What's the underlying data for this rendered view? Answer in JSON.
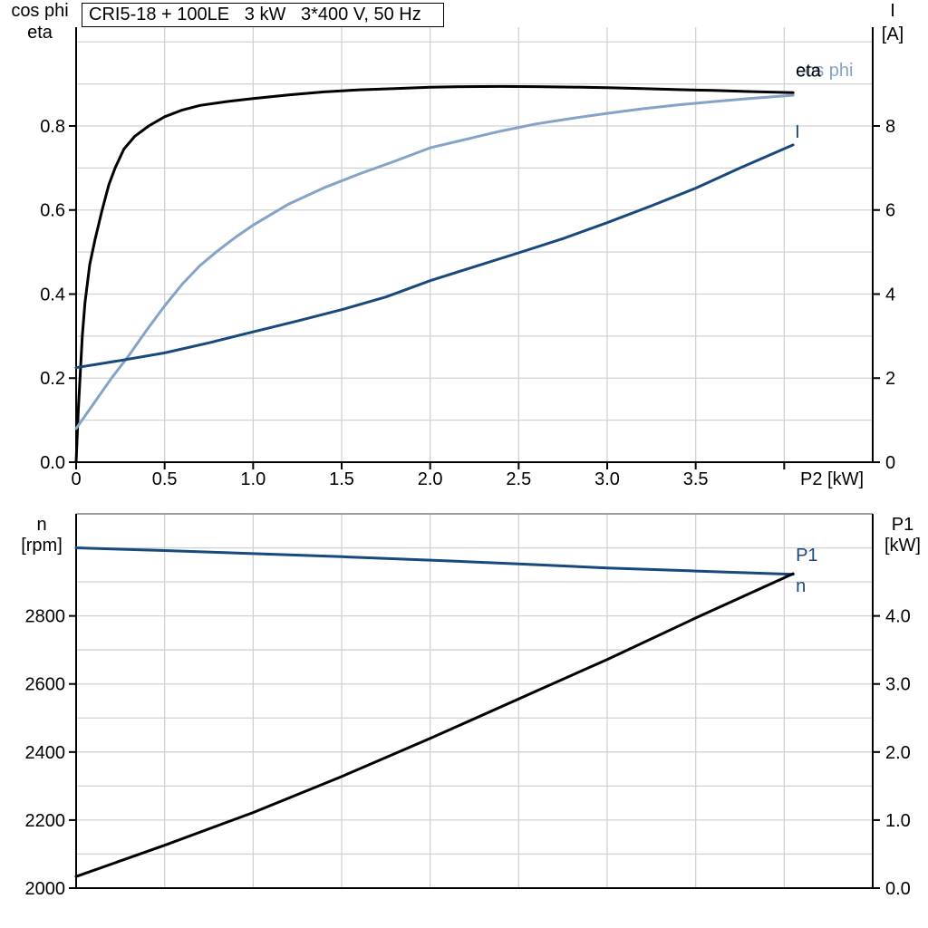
{
  "colors": {
    "black": "#000000",
    "light_blue": "#84A3C6",
    "dark_blue": "#17497C",
    "grid": "#D2D2D2",
    "frame_gray": "#808080",
    "background": "#FFFFFF"
  },
  "chart_data": [
    {
      "id": "performance-upper",
      "type": "line",
      "title": "CRI5-18 + 100LE   3 kW   3*400 V, 50 Hz",
      "x_axis": {
        "label": "P2 [kW]",
        "range": [
          0,
          4.5
        ],
        "grid_step": 0.5,
        "ticks": [
          [
            0,
            "0"
          ],
          [
            0.5,
            "0.5"
          ],
          [
            1,
            "1.0"
          ],
          [
            1.5,
            "1.5"
          ],
          [
            2,
            "2.0"
          ],
          [
            2.5,
            "2.5"
          ],
          [
            3,
            "3.0"
          ],
          [
            3.5,
            "3.5"
          ],
          [
            4,
            ""
          ]
        ]
      },
      "left_axis": {
        "label_lines": [
          "cos phi",
          "eta"
        ],
        "range": [
          0,
          1.035
        ],
        "grid_step": 0.1,
        "ticks": [
          [
            0,
            "0.0"
          ],
          [
            0.2,
            "0.2"
          ],
          [
            0.4,
            "0.4"
          ],
          [
            0.6,
            "0.6"
          ],
          [
            0.8,
            "0.8"
          ]
        ]
      },
      "right_axis": {
        "label_lines": [
          "I",
          "[A]"
        ],
        "range": [
          0,
          10.35
        ],
        "ticks": [
          [
            0,
            "0"
          ],
          [
            2,
            "2"
          ],
          [
            4,
            "4"
          ],
          [
            6,
            "6"
          ],
          [
            8,
            "8"
          ]
        ]
      },
      "series": [
        {
          "slug": "eta",
          "label": "eta",
          "axis": "left",
          "color": "black",
          "label_offset": [
            3,
            -18
          ],
          "points": [
            [
              0,
              0
            ],
            [
              0.012,
              0.12
            ],
            [
              0.022,
              0.2
            ],
            [
              0.035,
              0.3
            ],
            [
              0.05,
              0.38
            ],
            [
              0.077,
              0.47
            ],
            [
              0.107,
              0.53
            ],
            [
              0.147,
              0.6
            ],
            [
              0.185,
              0.66
            ],
            [
              0.22,
              0.7
            ],
            [
              0.27,
              0.745
            ],
            [
              0.33,
              0.775
            ],
            [
              0.41,
              0.8
            ],
            [
              0.5,
              0.822
            ],
            [
              0.6,
              0.838
            ],
            [
              0.7,
              0.849
            ],
            [
              0.85,
              0.858
            ],
            [
              1.0,
              0.865
            ],
            [
              1.2,
              0.874
            ],
            [
              1.4,
              0.881
            ],
            [
              1.6,
              0.886
            ],
            [
              1.8,
              0.889
            ],
            [
              2.0,
              0.892
            ],
            [
              2.2,
              0.8935
            ],
            [
              2.4,
              0.894
            ],
            [
              2.6,
              0.8935
            ],
            [
              2.8,
              0.8925
            ],
            [
              3.0,
              0.891
            ],
            [
              3.2,
              0.889
            ],
            [
              3.4,
              0.8865
            ],
            [
              3.6,
              0.8845
            ],
            [
              3.8,
              0.882
            ],
            [
              4.05,
              0.879
            ]
          ]
        },
        {
          "slug": "cos-phi",
          "label": "cos phi",
          "axis": "left",
          "color": "light_blue",
          "label_offset": [
            3,
            -21
          ],
          "points": [
            [
              0,
              0.08
            ],
            [
              0.1,
              0.14
            ],
            [
              0.2,
              0.2
            ],
            [
              0.3,
              0.255
            ],
            [
              0.4,
              0.315
            ],
            [
              0.5,
              0.372
            ],
            [
              0.6,
              0.424
            ],
            [
              0.7,
              0.468
            ],
            [
              0.8,
              0.503
            ],
            [
              0.9,
              0.535
            ],
            [
              1.0,
              0.564
            ],
            [
              1.2,
              0.614
            ],
            [
              1.4,
              0.653
            ],
            [
              1.6,
              0.686
            ],
            [
              1.8,
              0.716
            ],
            [
              2.0,
              0.748
            ],
            [
              2.2,
              0.768
            ],
            [
              2.4,
              0.788
            ],
            [
              2.6,
              0.805
            ],
            [
              2.8,
              0.818
            ],
            [
              3.0,
              0.83
            ],
            [
              3.2,
              0.841
            ],
            [
              3.4,
              0.85
            ],
            [
              3.6,
              0.858
            ],
            [
              3.8,
              0.865
            ],
            [
              4.05,
              0.873
            ]
          ]
        },
        {
          "slug": "current",
          "label": "I",
          "axis": "right",
          "color": "dark_blue",
          "label_offset": [
            2,
            -8
          ],
          "points": [
            [
              0,
              2.25
            ],
            [
              0.25,
              2.42
            ],
            [
              0.5,
              2.6
            ],
            [
              0.75,
              2.84
            ],
            [
              1.0,
              3.1
            ],
            [
              1.25,
              3.36
            ],
            [
              1.5,
              3.63
            ],
            [
              1.75,
              3.93
            ],
            [
              2.0,
              4.32
            ],
            [
              2.25,
              4.65
            ],
            [
              2.5,
              4.98
            ],
            [
              2.75,
              5.32
            ],
            [
              3.0,
              5.7
            ],
            [
              3.25,
              6.1
            ],
            [
              3.5,
              6.52
            ],
            [
              3.75,
              7.0
            ],
            [
              4.05,
              7.55
            ]
          ]
        }
      ]
    },
    {
      "id": "performance-lower",
      "type": "line",
      "title": "",
      "x_axis": {
        "label": "",
        "range": [
          0,
          4.5
        ],
        "grid_step": 0.5,
        "ticks": []
      },
      "left_axis": {
        "label_lines": [
          "n",
          "[rpm]"
        ],
        "range": [
          2000,
          3100
        ],
        "grid_step": 100,
        "ticks": [
          [
            2000,
            "2000"
          ],
          [
            2200,
            "2200"
          ],
          [
            2400,
            "2400"
          ],
          [
            2600,
            "2600"
          ],
          [
            2800,
            "2800"
          ]
        ]
      },
      "right_axis": {
        "label_lines": [
          "P1",
          "[kW]"
        ],
        "range": [
          0,
          5.5
        ],
        "ticks": [
          [
            0,
            "0.0"
          ],
          [
            1,
            "1.0"
          ],
          [
            2,
            "2.0"
          ],
          [
            3,
            "3.0"
          ],
          [
            4,
            "4.0"
          ]
        ]
      },
      "series": [
        {
          "slug": "n",
          "label": "n",
          "axis": "left",
          "color": "dark_blue",
          "label_offset": [
            3,
            19
          ],
          "points": [
            [
              0,
              3000
            ],
            [
              0.5,
              2992
            ],
            [
              1.0,
              2983
            ],
            [
              1.5,
              2974
            ],
            [
              2.0,
              2964
            ],
            [
              2.5,
              2953
            ],
            [
              3.0,
              2941
            ],
            [
              3.5,
              2932
            ],
            [
              4.05,
              2922
            ]
          ]
        },
        {
          "slug": "p1",
          "label": "P1",
          "axis": "right",
          "color": "dark_blue",
          "line_color": "black",
          "label_offset": [
            3,
            -14
          ],
          "points": [
            [
              0,
              0.17
            ],
            [
              0.5,
              0.63
            ],
            [
              1.0,
              1.11
            ],
            [
              1.5,
              1.64
            ],
            [
              2.0,
              2.2
            ],
            [
              2.5,
              2.78
            ],
            [
              3.0,
              3.36
            ],
            [
              3.5,
              3.97
            ],
            [
              4.05,
              4.62
            ]
          ]
        }
      ]
    }
  ]
}
